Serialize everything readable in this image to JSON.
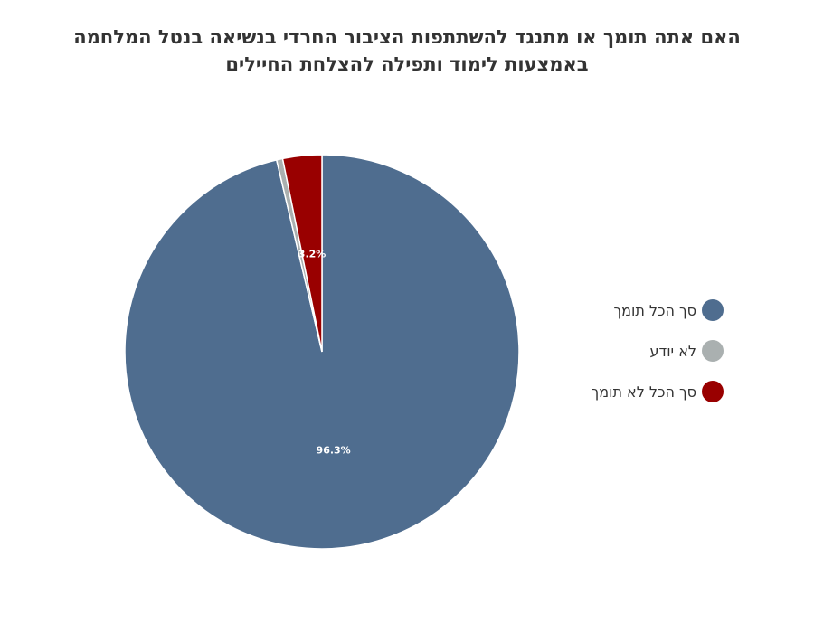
{
  "chart_data": {
    "type": "pie",
    "title_lines": [
      "האם אתה תומך או מתנגד להשתתפות הציבור החרדי בנשיאה בנטל המלחמה",
      "באמצעות לימוד ותפילה להצלחת החיילים"
    ],
    "slices": [
      {
        "name": "סך הכל תומך",
        "value": 96.3,
        "label": "96.3%",
        "color": "#4f6d8f"
      },
      {
        "name": "לא יודע",
        "value": 0.5,
        "label": "",
        "color": "#aab0b0"
      },
      {
        "name": "סך הכל לא תומך",
        "value": 3.2,
        "label": "3.2%",
        "color": "#990000"
      }
    ],
    "legend_position": "right"
  }
}
